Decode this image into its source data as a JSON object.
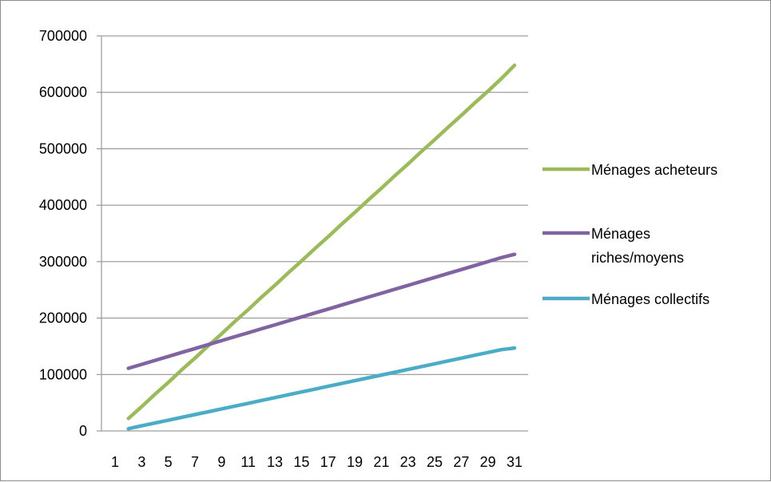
{
  "chart_data": {
    "type": "line",
    "x": [
      2,
      3,
      4,
      5,
      6,
      7,
      8,
      9,
      10,
      11,
      12,
      13,
      14,
      15,
      16,
      17,
      18,
      19,
      20,
      21,
      22,
      23,
      24,
      25,
      26,
      27,
      28,
      29,
      30,
      31
    ],
    "x_tick_labels": [
      "1",
      "3",
      "5",
      "7",
      "9",
      "11",
      "13",
      "15",
      "17",
      "19",
      "21",
      "23",
      "25",
      "27",
      "29",
      "31"
    ],
    "y_tick_labels": [
      "0",
      "100000",
      "200000",
      "300000",
      "400000",
      "500000",
      "600000",
      "700000"
    ],
    "ylim": [
      0,
      700000
    ],
    "grid": "horizontal",
    "legend_position": "right",
    "series": [
      {
        "name": "Ménages acheteurs",
        "legend_lines": [
          "Ménages acheteurs"
        ],
        "color": "#9BBB59",
        "values": [
          22000,
          43000,
          65000,
          86000,
          108000,
          129000,
          151000,
          172000,
          194000,
          215000,
          237000,
          258000,
          280000,
          301000,
          323000,
          344000,
          366000,
          387000,
          409000,
          430000,
          452000,
          473000,
          495000,
          516000,
          538000,
          559000,
          581000,
          602000,
          624000,
          648000
        ]
      },
      {
        "name": "Ménages riches/moyens",
        "legend_lines": [
          "Ménages",
          "riches/moyens"
        ],
        "color": "#8064A2",
        "values": [
          111000,
          118000,
          125000,
          132000,
          139000,
          146000,
          153000,
          160000,
          167000,
          174000,
          181000,
          188000,
          195000,
          202000,
          209000,
          216000,
          223000,
          230000,
          237000,
          244000,
          251000,
          258000,
          265000,
          272000,
          279000,
          286000,
          293000,
          300000,
          307000,
          313000
        ]
      },
      {
        "name": "Ménages collectifs",
        "legend_lines": [
          "Ménages collectifs"
        ],
        "color": "#4BACC6",
        "values": [
          4000,
          9000,
          14000,
          19000,
          24000,
          29000,
          34000,
          39000,
          44000,
          49000,
          54000,
          59000,
          64000,
          69000,
          74000,
          79000,
          84000,
          89000,
          94000,
          99000,
          104000,
          109000,
          114000,
          119000,
          124000,
          129000,
          134000,
          139000,
          144000,
          147000
        ]
      }
    ]
  }
}
